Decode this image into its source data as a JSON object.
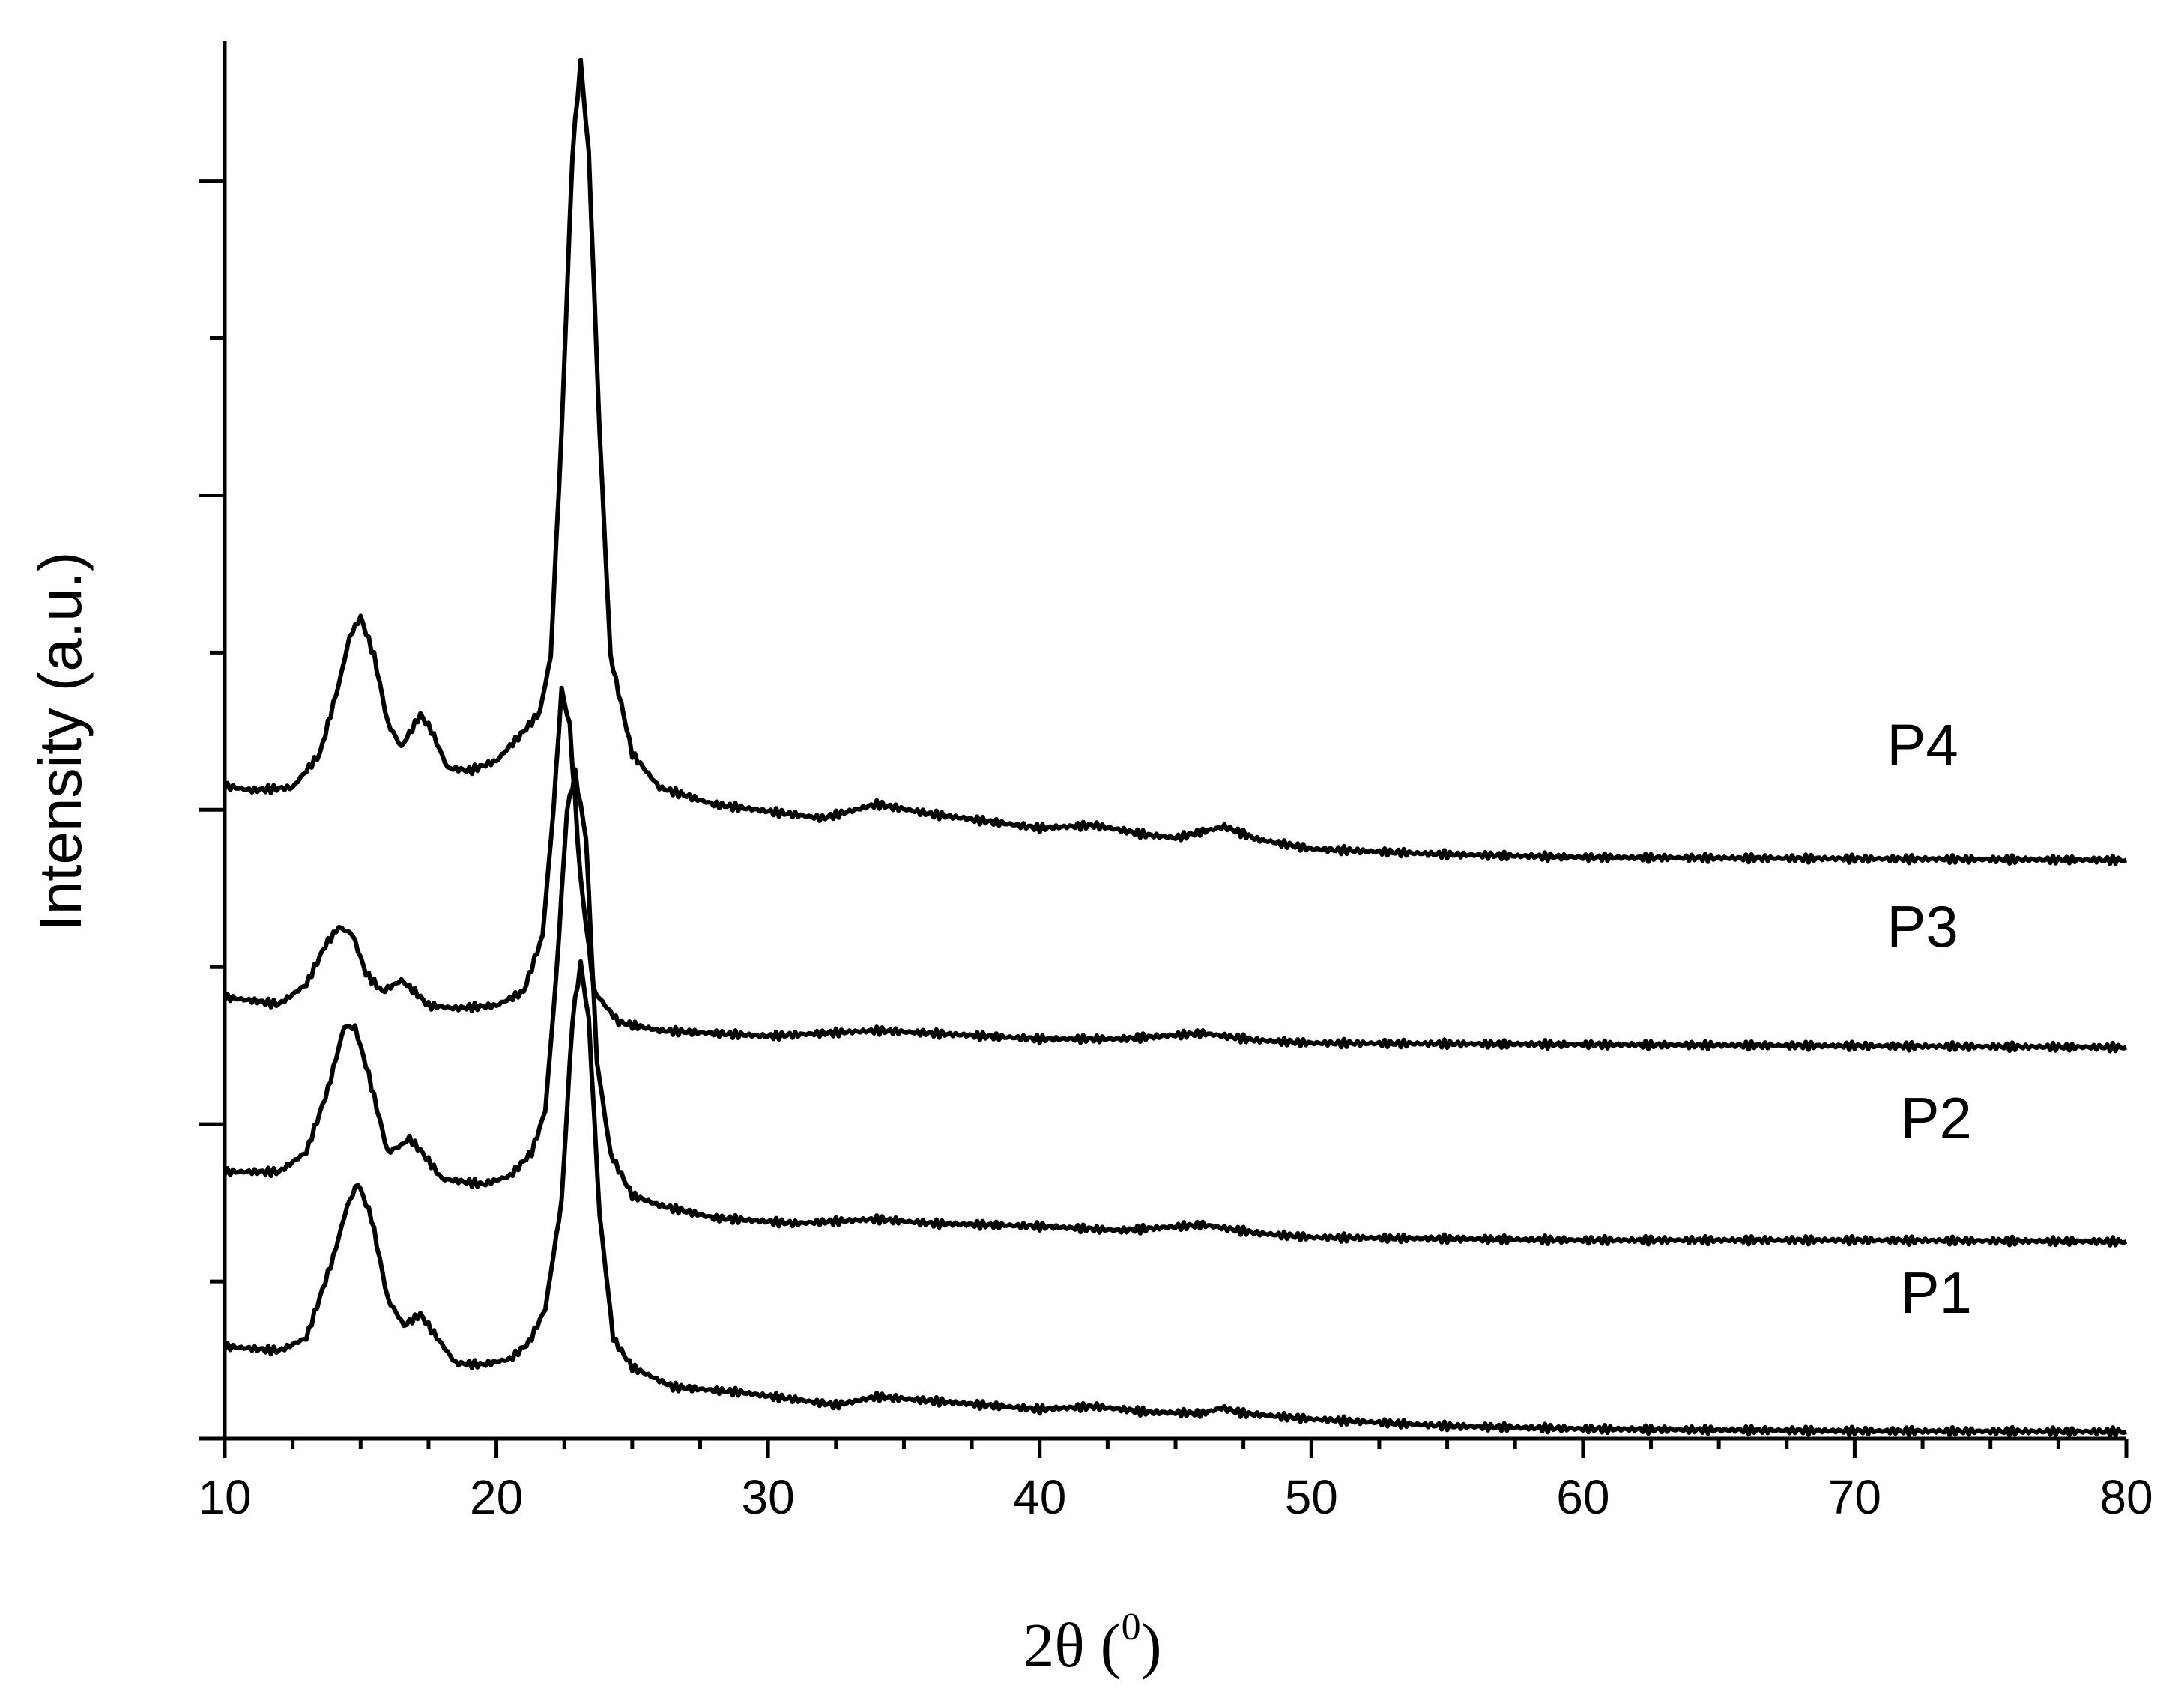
{
  "chart_data": {
    "type": "line",
    "title": "",
    "xlabel_main": "2θ (",
    "xlabel_sup": "0",
    "xlabel_close": ")",
    "ylabel": "Intensity (a.u.)",
    "xlim": [
      10,
      80
    ],
    "ylim": [
      0,
      100
    ],
    "x_ticks": [
      10,
      20,
      30,
      40,
      50,
      60,
      70,
      80
    ],
    "x_tick_labels": [
      "10",
      "20",
      "30",
      "40",
      "50",
      "60",
      "70",
      "80"
    ],
    "x_minor_step": 2.5,
    "y_major_ticks": [
      0,
      22.5,
      45,
      67.5,
      90
    ],
    "y_minor_ticks": [
      11.25,
      33.75,
      56.25,
      78.75
    ],
    "grid": false,
    "series": [
      {
        "name": "P1",
        "label_pos": [
          73,
          9
        ],
        "points": [
          [
            10,
            6.6
          ],
          [
            12,
            6.3
          ],
          [
            13,
            7.2
          ],
          [
            14,
            13
          ],
          [
            14.5,
            16.6
          ],
          [
            14.9,
            18.3
          ],
          [
            15.4,
            15.8
          ],
          [
            16,
            10
          ],
          [
            16.6,
            8.1
          ],
          [
            17.2,
            8.9
          ],
          [
            17.6,
            7.8
          ],
          [
            18.5,
            5.4
          ],
          [
            19.5,
            5.3
          ],
          [
            20.5,
            5.7
          ],
          [
            21.2,
            6.9
          ],
          [
            21.8,
            9.3
          ],
          [
            22.4,
            17
          ],
          [
            22.8,
            30
          ],
          [
            23.1,
            34
          ],
          [
            23.4,
            30
          ],
          [
            23.8,
            16
          ],
          [
            24.3,
            7.2
          ],
          [
            25,
            5.1
          ],
          [
            26.5,
            3.7
          ],
          [
            29,
            3.3
          ],
          [
            31,
            2.8
          ],
          [
            32.5,
            2.4
          ],
          [
            34,
            3
          ],
          [
            36,
            2.7
          ],
          [
            38,
            2.4
          ],
          [
            40,
            2.1
          ],
          [
            42,
            2.3
          ],
          [
            44,
            1.9
          ],
          [
            46,
            1.8
          ],
          [
            46.7,
            2.2
          ],
          [
            47.5,
            1.8
          ],
          [
            50,
            1.4
          ],
          [
            55,
            0.9
          ],
          [
            60,
            0.7
          ],
          [
            70,
            0.55
          ],
          [
            80,
            0.5
          ]
        ]
      },
      {
        "name": "P2",
        "label_pos": [
          73,
          21.5
        ],
        "points": [
          [
            10,
            19.1
          ],
          [
            12,
            19.1
          ],
          [
            13,
            20.5
          ],
          [
            13.8,
            25
          ],
          [
            14.4,
            29.5
          ],
          [
            14.8,
            29.4
          ],
          [
            15.3,
            26
          ],
          [
            16,
            20.5
          ],
          [
            16.5,
            21
          ],
          [
            16.8,
            21.5
          ],
          [
            17.3,
            20.4
          ],
          [
            18,
            18.6
          ],
          [
            19.5,
            18.2
          ],
          [
            20.5,
            18.8
          ],
          [
            21.3,
            20.5
          ],
          [
            21.8,
            23.5
          ],
          [
            22.2,
            33
          ],
          [
            22.6,
            45
          ],
          [
            22.9,
            47.6
          ],
          [
            23.3,
            43
          ],
          [
            23.7,
            27
          ],
          [
            24.2,
            20.4
          ],
          [
            25,
            17.4
          ],
          [
            26,
            16.7
          ],
          [
            28,
            15.8
          ],
          [
            31,
            15.4
          ],
          [
            34,
            15.7
          ],
          [
            36,
            15.4
          ],
          [
            40,
            15.2
          ],
          [
            43,
            14.9
          ],
          [
            46,
            15.3
          ],
          [
            48,
            14.7
          ],
          [
            50,
            14.4
          ],
          [
            55,
            14.3
          ],
          [
            60,
            14.2
          ],
          [
            70,
            14.2
          ],
          [
            80,
            14.1
          ]
        ]
      },
      {
        "name": "P3",
        "label_pos": [
          72.5,
          35.2
        ],
        "points": [
          [
            10,
            31.6
          ],
          [
            12,
            31.1
          ],
          [
            13,
            32.5
          ],
          [
            13.7,
            35.3
          ],
          [
            14.2,
            36.6
          ],
          [
            14.7,
            36.1
          ],
          [
            15.2,
            33.3
          ],
          [
            15.8,
            32
          ],
          [
            16.5,
            32.8
          ],
          [
            17,
            32
          ],
          [
            17.5,
            31
          ],
          [
            18.5,
            30.8
          ],
          [
            20,
            31
          ],
          [
            21,
            32
          ],
          [
            21.7,
            36
          ],
          [
            22.1,
            45
          ],
          [
            22.4,
            53.6
          ],
          [
            22.7,
            51
          ],
          [
            23.1,
            40
          ],
          [
            23.6,
            32
          ],
          [
            24.5,
            29.8
          ],
          [
            26,
            29.2
          ],
          [
            28,
            29
          ],
          [
            30,
            28.8
          ],
          [
            34,
            29.2
          ],
          [
            37,
            28.9
          ],
          [
            40,
            28.6
          ],
          [
            43,
            28.6
          ],
          [
            46,
            29
          ],
          [
            48,
            28.5
          ],
          [
            50,
            28.3
          ],
          [
            60,
            28.2
          ],
          [
            70,
            28.1
          ],
          [
            80,
            28
          ]
        ]
      },
      {
        "name": "P4",
        "label_pos": [
          72.5,
          48.2
        ],
        "points": [
          [
            10,
            46.7
          ],
          [
            11,
            46.4
          ],
          [
            12.5,
            46.6
          ],
          [
            13.5,
            49
          ],
          [
            14.2,
            54
          ],
          [
            14.6,
            57.4
          ],
          [
            15,
            58.8
          ],
          [
            15.5,
            56
          ],
          [
            16,
            51.2
          ],
          [
            16.5,
            49.5
          ],
          [
            17.2,
            51.8
          ],
          [
            17.6,
            50.7
          ],
          [
            18.2,
            48
          ],
          [
            19,
            47.8
          ],
          [
            20,
            48.5
          ],
          [
            21,
            50.6
          ],
          [
            21.6,
            52
          ],
          [
            22,
            56
          ],
          [
            22.4,
            72
          ],
          [
            22.8,
            92
          ],
          [
            23.1,
            98.5
          ],
          [
            23.4,
            92
          ],
          [
            23.8,
            72
          ],
          [
            24.2,
            56
          ],
          [
            25,
            49
          ],
          [
            26,
            46.6
          ],
          [
            28,
            45.4
          ],
          [
            30,
            44.9
          ],
          [
            32,
            44.4
          ],
          [
            34,
            45.4
          ],
          [
            36,
            44.7
          ],
          [
            38,
            44.2
          ],
          [
            40,
            43.7
          ],
          [
            42,
            43.9
          ],
          [
            44,
            43.2
          ],
          [
            45,
            43
          ],
          [
            46.8,
            43.8
          ],
          [
            48,
            42.9
          ],
          [
            50,
            42.2
          ],
          [
            55,
            41.8
          ],
          [
            60,
            41.6
          ],
          [
            70,
            41.5
          ],
          [
            80,
            41.4
          ]
        ]
      }
    ]
  }
}
